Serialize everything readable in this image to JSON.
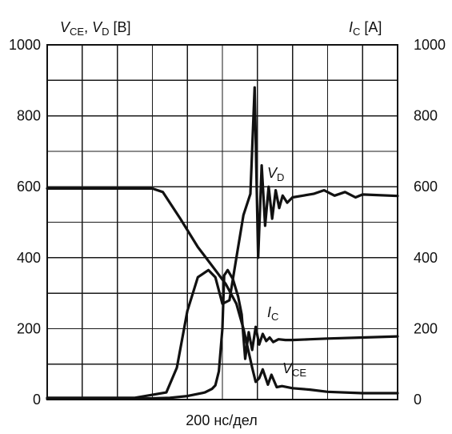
{
  "chart_data": {
    "type": "line",
    "left_axis_title": {
      "v1": "V",
      "v1_sub": "CE",
      "sep": ", ",
      "v2": "V",
      "v2_sub": "D",
      "unit": " [B]"
    },
    "right_axis_title": {
      "v": "I",
      "v_sub": "C",
      "unit": " [A]"
    },
    "xlabel": "200 нс/дел",
    "x_divisions": 10,
    "y_divisions": 10,
    "ylim": [
      0,
      1000
    ],
    "y2lim": [
      0,
      1000
    ],
    "y_ticks": [
      "1000",
      "800",
      "600",
      "400",
      "200",
      "0"
    ],
    "y2_ticks": [
      "1000",
      "800",
      "600",
      "400",
      "200",
      "0"
    ],
    "series": [
      {
        "name": "V",
        "name_sub": "CE",
        "x": [
          0,
          3.0,
          3.3,
          3.8,
          4.3,
          4.8,
          5.1,
          5.4,
          5.6,
          5.85,
          5.95,
          6.05,
          6.15,
          6.3,
          6.4,
          6.55,
          6.7,
          7.0,
          7.5,
          8.0,
          9.0,
          10
        ],
        "values": [
          595,
          595,
          585,
          510,
          430,
          365,
          325,
          270,
          200,
          90,
          50,
          60,
          85,
          42,
          70,
          35,
          38,
          32,
          28,
          22,
          18,
          18
        ]
      },
      {
        "name": "V",
        "name_sub": "D",
        "x": [
          0,
          2.5,
          3.4,
          3.7,
          4.0,
          4.3,
          4.6,
          4.8,
          5.0,
          5.2,
          5.4,
          5.6,
          5.8,
          5.92,
          6.02,
          6.12,
          6.22,
          6.32,
          6.42,
          6.52,
          6.62,
          6.72,
          6.85,
          7.0,
          7.3,
          7.6,
          7.9,
          8.2,
          8.5,
          8.8,
          9.0,
          10
        ],
        "values": [
          5,
          5,
          20,
          90,
          250,
          345,
          365,
          345,
          270,
          280,
          400,
          520,
          580,
          880,
          400,
          660,
          490,
          600,
          510,
          590,
          540,
          575,
          555,
          570,
          575,
          580,
          590,
          575,
          585,
          570,
          578,
          574
        ]
      },
      {
        "name": "I",
        "name_sub": "C",
        "x": [
          0,
          2.5,
          3.5,
          4.0,
          4.5,
          4.7,
          4.8,
          4.9,
          5.0,
          5.05,
          5.15,
          5.3,
          5.45,
          5.55,
          5.65,
          5.75,
          5.85,
          5.95,
          6.05,
          6.15,
          6.25,
          6.35,
          6.45,
          6.6,
          6.8,
          7.0,
          7.5,
          8.0,
          9.0,
          10
        ],
        "values": [
          2,
          2,
          5,
          10,
          20,
          30,
          40,
          80,
          200,
          350,
          365,
          340,
          290,
          240,
          115,
          190,
          140,
          205,
          155,
          185,
          165,
          175,
          162,
          170,
          168,
          168,
          170,
          172,
          175,
          178
        ]
      }
    ],
    "grid": true,
    "legend": "inline"
  }
}
